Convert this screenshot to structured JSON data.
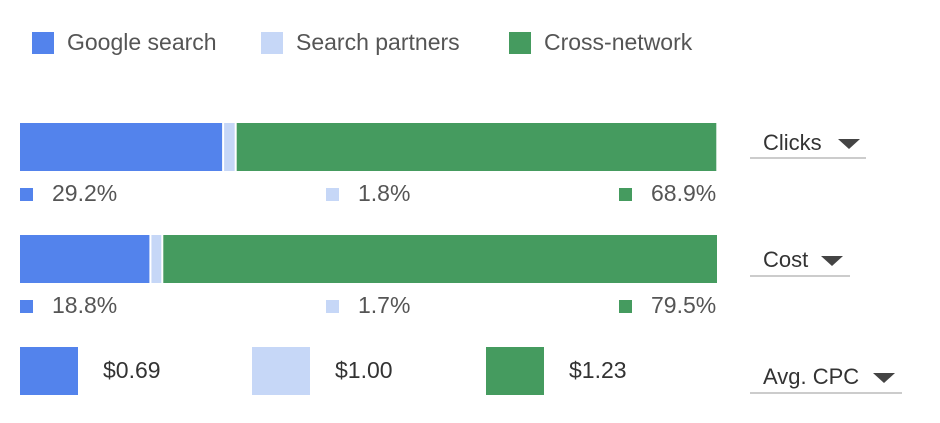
{
  "chart_data": {
    "type": "stacked-bar",
    "categories": [
      "Clicks",
      "Cost"
    ],
    "xlim": [
      0,
      100
    ],
    "series": [
      {
        "name": "Google search",
        "color": "#5383ec",
        "values": [
          29.2,
          18.8
        ],
        "value_labels": [
          "29.2%",
          "18.8%"
        ]
      },
      {
        "name": "Search partners",
        "color": "#c6d7f7",
        "values": [
          1.8,
          1.7
        ],
        "value_labels": [
          "1.8%",
          "1.7%"
        ]
      },
      {
        "name": "Cross-network",
        "color": "#459b5f",
        "values": [
          68.9,
          79.5
        ],
        "value_labels": [
          "68.9%",
          "79.5%"
        ]
      }
    ],
    "cpc": {
      "label": "Avg. CPC",
      "values": [
        0.69,
        1.0,
        1.23
      ],
      "value_labels": [
        "$0.69",
        "$1.00",
        "$1.23"
      ]
    }
  }
}
